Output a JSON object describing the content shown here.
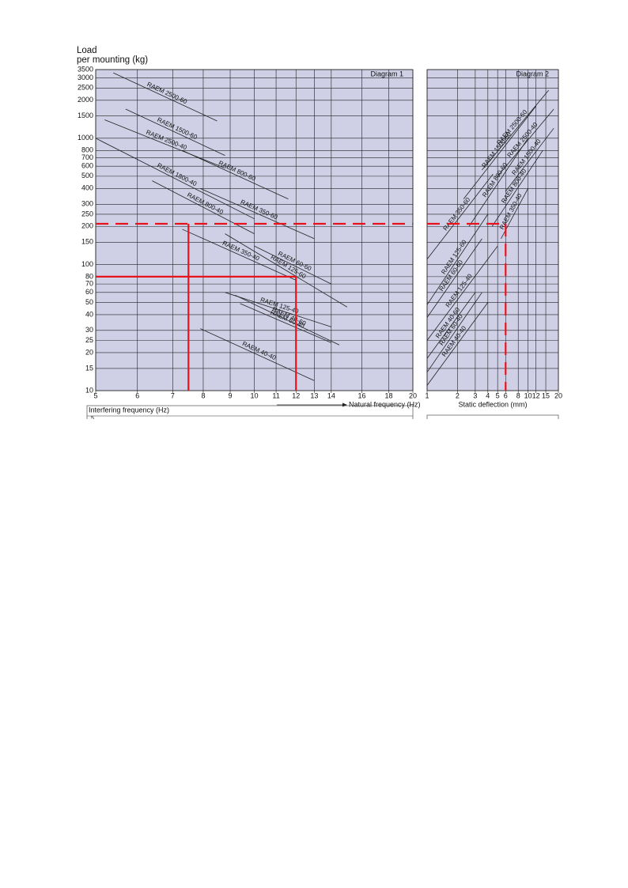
{
  "chart_data": [
    {
      "type": "line",
      "title": "Diagram 1",
      "y_label": [
        "Load",
        "per mounting (kg)"
      ],
      "x_label": "Natural frequency (Hz)",
      "x2_label": "Interfering frequency (Hz)",
      "x2ticks": [
        5
      ],
      "xlog": true,
      "ylog": true,
      "grid": true,
      "background": "#cfcfe6",
      "ytick_labels": true,
      "xlim": [
        5,
        20
      ],
      "ylim": [
        10,
        3500
      ],
      "xticks": [
        5,
        6,
        7,
        8,
        9,
        10,
        11,
        12,
        13,
        14,
        16,
        18,
        20
      ],
      "yticks": [
        10,
        15,
        20,
        25,
        30,
        40,
        50,
        60,
        70,
        80,
        100,
        150,
        200,
        250,
        300,
        400,
        500,
        600,
        700,
        800,
        1000,
        1500,
        2000,
        2500,
        3000,
        3500
      ],
      "series": [
        {
          "name": "RAEM 2500-60",
          "color": "#222222",
          "x": [
            5.4,
            8.5
          ],
          "values": [
            3300,
            1370
          ]
        },
        {
          "name": "RAEM 1500-60",
          "color": "#222222",
          "x": [
            5.7,
            8.8
          ],
          "values": [
            1700,
            730
          ]
        },
        {
          "name": "RAEM 2500-40",
          "color": "#222222",
          "x": [
            5.2,
            8.8
          ],
          "values": [
            1400,
            580
          ]
        },
        {
          "name": "RAEM 800-60",
          "color": "#222222",
          "x": [
            7.3,
            11.6
          ],
          "values": [
            800,
            330
          ]
        },
        {
          "name": "RAEM 1800-40",
          "color": "#222222",
          "x": [
            5,
            10
          ],
          "values": [
            1000,
            230
          ]
        },
        {
          "name": "RAEM 800-40",
          "color": "#222222",
          "x": [
            6.4,
            10
          ],
          "values": [
            460,
            175
          ]
        },
        {
          "name": "RAEM 350-60",
          "color": "#222222",
          "x": [
            7.9,
            13
          ],
          "values": [
            400,
            160
          ]
        },
        {
          "name": "RAEM 350-40",
          "color": "#222222",
          "x": [
            7.3,
            12
          ],
          "values": [
            190,
            75
          ]
        },
        {
          "name": "RAEM 125-60",
          "color": "#222222",
          "x": [
            8.8,
            15
          ],
          "values": [
            175,
            46
          ]
        },
        {
          "name": "RAEM 60-60",
          "color": "#222222",
          "x": [
            10,
            14
          ],
          "values": [
            140,
            70
          ]
        },
        {
          "name": "RAEM 125-40",
          "color": "#222222",
          "x": [
            8.8,
            14
          ],
          "values": [
            60,
            32
          ]
        },
        {
          "name": "RAEM 40-60",
          "color": "#222222",
          "x": [
            9.2,
            14.5
          ],
          "values": [
            57,
            23
          ]
        },
        {
          "name": "RAEM 60-40",
          "color": "#222222",
          "x": [
            9.4,
            14
          ],
          "values": [
            49,
            24
          ]
        },
        {
          "name": "RAEM 40-40",
          "color": "#222222",
          "x": [
            7.9,
            13
          ],
          "values": [
            31,
            12
          ]
        }
      ],
      "reference_lines": [
        {
          "axis": "y",
          "value": 210,
          "from": 5,
          "to": 20,
          "dashed": true,
          "color": "#e8141b"
        },
        {
          "axis": "x",
          "value": 7.5,
          "from": 210,
          "to": 10,
          "dashed": false,
          "color": "#e8141b"
        },
        {
          "axis": "y",
          "value": 80,
          "from": 5,
          "to": 12,
          "dashed": false,
          "color": "#e8141b"
        },
        {
          "axis": "x",
          "value": 12,
          "from": 80,
          "to": 10,
          "dashed": false,
          "color": "#e8141b"
        }
      ]
    },
    {
      "type": "line",
      "title": "Diagram 2",
      "x_label": "Static deflection (mm)",
      "xlog": true,
      "ylog": true,
      "grid": true,
      "background": "#cfcfe6",
      "ytick_labels": false,
      "xlim": [
        1,
        20
      ],
      "ylim": [
        10,
        3500
      ],
      "xticks": [
        1,
        2,
        3,
        4,
        5,
        6,
        8,
        10,
        12,
        15,
        20
      ],
      "yticks": [
        10,
        15,
        20,
        25,
        30,
        40,
        50,
        60,
        70,
        80,
        100,
        150,
        200,
        250,
        300,
        400,
        500,
        600,
        700,
        800,
        1000,
        1500,
        2000,
        2500,
        3000,
        3500
      ],
      "series": [
        {
          "name": "RAEM 2500-60",
          "color": "#222222",
          "x": [
            3.5,
            16
          ],
          "values": [
            560,
            2400
          ]
        },
        {
          "name": "RAEM 1500-60",
          "color": "#222222",
          "x": [
            2.3,
            12
          ],
          "values": [
            330,
            1800
          ]
        },
        {
          "name": "RAEM 2500-40",
          "color": "#222222",
          "x": [
            5,
            18
          ],
          "values": [
            500,
            1700
          ]
        },
        {
          "name": "RAEM 800-60",
          "color": "#222222",
          "x": [
            2.6,
            10
          ],
          "values": [
            200,
            1000
          ]
        },
        {
          "name": "RAEM 1500-40",
          "color": "#222222",
          "x": [
            6,
            18
          ],
          "values": [
            380,
            1200
          ]
        },
        {
          "name": "RAEM 800-40",
          "color": "#222222",
          "x": [
            4.4,
            14
          ],
          "values": [
            200,
            800
          ]
        },
        {
          "name": "RAEM 350-60",
          "color": "#222222",
          "x": [
            1,
            4.5
          ],
          "values": [
            110,
            520
          ]
        },
        {
          "name": "RAEM 350-40",
          "color": "#222222",
          "x": [
            5.4,
            10
          ],
          "values": [
            160,
            400
          ]
        },
        {
          "name": "RAEM 125-60",
          "color": "#222222",
          "x": [
            1,
            4
          ],
          "values": [
            48,
            250
          ]
        },
        {
          "name": "RAEM 60-60",
          "color": "#222222",
          "x": [
            1,
            3.5
          ],
          "values": [
            38,
            160
          ]
        },
        {
          "name": "RAEM 125-40",
          "color": "#222222",
          "x": [
            1,
            5
          ],
          "values": [
            25,
            140
          ]
        },
        {
          "name": "RAEM 40-60",
          "color": "#222222",
          "x": [
            1,
            3
          ],
          "values": [
            18,
            60
          ]
        },
        {
          "name": "RAEM 60-40",
          "color": "#222222",
          "x": [
            1,
            3.5
          ],
          "values": [
            14,
            60
          ]
        },
        {
          "name": "RAEM 40-40",
          "color": "#222222",
          "x": [
            1,
            4
          ],
          "values": [
            11,
            50
          ]
        }
      ],
      "reference_lines": [
        {
          "axis": "y",
          "value": 210,
          "from": 1,
          "to": 6,
          "dashed": true,
          "color": "#e8141b"
        },
        {
          "axis": "x",
          "value": 6,
          "from": 210,
          "to": 10,
          "dashed": true,
          "color": "#e8141b"
        }
      ]
    }
  ]
}
